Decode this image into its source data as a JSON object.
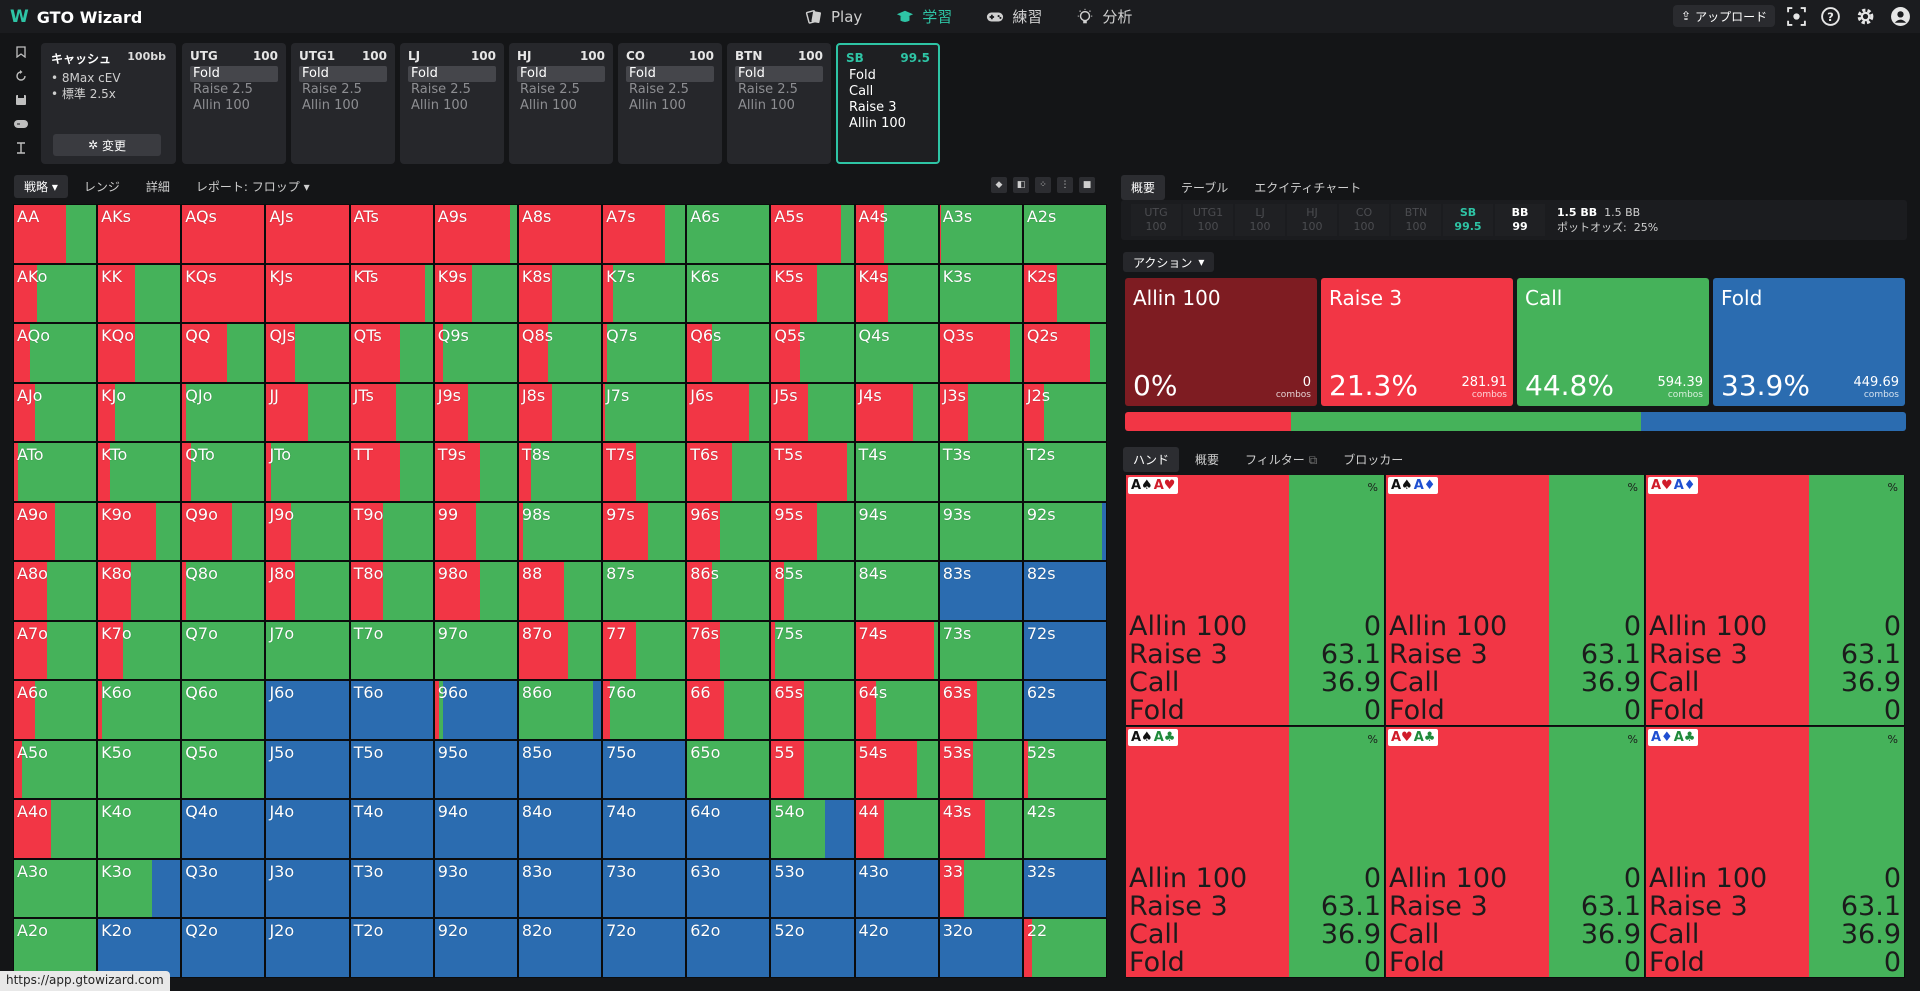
{
  "app": {
    "name": "GTO Wizard",
    "url": "https://app.gtowizard.com"
  },
  "nav": {
    "items": [
      {
        "label": "Play",
        "icon": "play-card-icon"
      },
      {
        "label": "学習",
        "icon": "graduation-cap-icon"
      },
      {
        "label": "練習",
        "icon": "gamepad-icon"
      },
      {
        "label": "分析",
        "icon": "lightbulb-icon"
      }
    ],
    "upload_label": "アップロード"
  },
  "cash": {
    "title": "キャッシュ",
    "stack": "100bb",
    "lines": [
      "8Max cEV",
      "標準 2.5x"
    ],
    "change_label": "変更"
  },
  "positions": [
    {
      "name": "UTG",
      "stack": "100",
      "actions": [
        "Fold",
        "Raise 2.5",
        "Allin 100"
      ],
      "selected": 0
    },
    {
      "name": "UTG1",
      "stack": "100",
      "actions": [
        "Fold",
        "Raise 2.5",
        "Allin 100"
      ],
      "selected": 0
    },
    {
      "name": "LJ",
      "stack": "100",
      "actions": [
        "Fold",
        "Raise 2.5",
        "Allin 100"
      ],
      "selected": 0
    },
    {
      "name": "HJ",
      "stack": "100",
      "actions": [
        "Fold",
        "Raise 2.5",
        "Allin 100"
      ],
      "selected": 0
    },
    {
      "name": "CO",
      "stack": "100",
      "actions": [
        "Fold",
        "Raise 2.5",
        "Allin 100"
      ],
      "selected": 0
    },
    {
      "name": "BTN",
      "stack": "100",
      "actions": [
        "Fold",
        "Raise 2.5",
        "Allin 100"
      ],
      "selected": 0
    },
    {
      "name": "SB",
      "stack": "99.5",
      "actions": [
        "Fold",
        "Call",
        "Raise 3",
        "Allin 100"
      ],
      "selected": -1
    }
  ],
  "grid_tabs": [
    "戦略",
    "レンジ",
    "詳細",
    "レポート: フロップ"
  ],
  "right_tabs": [
    "概要",
    "テーブル",
    "エクイティチャート"
  ],
  "stack_summary": [
    {
      "pos": "UTG",
      "stack": "100"
    },
    {
      "pos": "UTG1",
      "stack": "100"
    },
    {
      "pos": "LJ",
      "stack": "100"
    },
    {
      "pos": "HJ",
      "stack": "100"
    },
    {
      "pos": "CO",
      "stack": "100"
    },
    {
      "pos": "BTN",
      "stack": "100"
    },
    {
      "pos": "SB",
      "stack": "99.5"
    },
    {
      "pos": "BB",
      "stack": "99"
    }
  ],
  "pot": {
    "value": "1.5 BB",
    "value2": "1.5 BB",
    "odds_label": "ポットオッズ:",
    "odds": "25%"
  },
  "action_header": "アクション",
  "colors": {
    "allin": "#7e1c22",
    "raise": "#f23645",
    "call": "#45b25a",
    "fold": "#2b6cb0"
  },
  "actions_summary": [
    {
      "name": "Allin 100",
      "pct": "0%",
      "combos": "0",
      "color": "#7e1c22"
    },
    {
      "name": "Raise 3",
      "pct": "21.3%",
      "combos": "281.91",
      "color": "#f23645"
    },
    {
      "name": "Call",
      "pct": "44.8%",
      "combos": "594.39",
      "color": "#45b25a"
    },
    {
      "name": "Fold",
      "pct": "33.9%",
      "combos": "449.69",
      "color": "#2b6cb0"
    }
  ],
  "combos_label": "combos",
  "hand_tabs": [
    "ハンド",
    "概要",
    "フィルター",
    "ブロッカー"
  ],
  "hand_combos": [
    {
      "cards": [
        "A♠",
        "A♥"
      ],
      "stats": [
        [
          "Allin 100",
          "0"
        ],
        [
          "Raise 3",
          "63.1"
        ],
        [
          "Call",
          "36.9"
        ],
        [
          "Fold",
          "0"
        ]
      ]
    },
    {
      "cards": [
        "A♠",
        "A♦"
      ],
      "stats": [
        [
          "Allin 100",
          "0"
        ],
        [
          "Raise 3",
          "63.1"
        ],
        [
          "Call",
          "36.9"
        ],
        [
          "Fold",
          "0"
        ]
      ]
    },
    {
      "cards": [
        "A♥",
        "A♦"
      ],
      "stats": [
        [
          "Allin 100",
          "0"
        ],
        [
          "Raise 3",
          "63.1"
        ],
        [
          "Call",
          "36.9"
        ],
        [
          "Fold",
          "0"
        ]
      ]
    },
    {
      "cards": [
        "A♠",
        "A♣"
      ],
      "stats": [
        [
          "Allin 100",
          "0"
        ],
        [
          "Raise 3",
          "63.1"
        ],
        [
          "Call",
          "36.9"
        ],
        [
          "Fold",
          "0"
        ]
      ]
    },
    {
      "cards": [
        "A♥",
        "A♣"
      ],
      "stats": [
        [
          "Allin 100",
          "0"
        ],
        [
          "Raise 3",
          "63.1"
        ],
        [
          "Call",
          "36.9"
        ],
        [
          "Fold",
          "0"
        ]
      ]
    },
    {
      "cards": [
        "A♦",
        "A♣"
      ],
      "stats": [
        [
          "Allin 100",
          "0"
        ],
        [
          "Raise 3",
          "63.1"
        ],
        [
          "Call",
          "36.9"
        ],
        [
          "Fold",
          "0"
        ]
      ]
    }
  ],
  "hand_pct_label": "%",
  "grid": {
    "labels": [
      [
        "AA",
        "AKs",
        "AQs",
        "AJs",
        "ATs",
        "A9s",
        "A8s",
        "A7s",
        "A6s",
        "A5s",
        "A4s",
        "A3s",
        "A2s"
      ],
      [
        "AKo",
        "KK",
        "KQs",
        "KJs",
        "KTs",
        "K9s",
        "K8s",
        "K7s",
        "K6s",
        "K5s",
        "K4s",
        "K3s",
        "K2s"
      ],
      [
        "AQo",
        "KQo",
        "QQ",
        "QJs",
        "QTs",
        "Q9s",
        "Q8s",
        "Q7s",
        "Q6s",
        "Q5s",
        "Q4s",
        "Q3s",
        "Q2s"
      ],
      [
        "AJo",
        "KJo",
        "QJo",
        "JJ",
        "JTs",
        "J9s",
        "J8s",
        "J7s",
        "J6s",
        "J5s",
        "J4s",
        "J3s",
        "J2s"
      ],
      [
        "ATo",
        "KTo",
        "QTo",
        "JTo",
        "TT",
        "T9s",
        "T8s",
        "T7s",
        "T6s",
        "T5s",
        "T4s",
        "T3s",
        "T2s"
      ],
      [
        "A9o",
        "K9o",
        "Q9o",
        "J9o",
        "T9o",
        "99",
        "98s",
        "97s",
        "96s",
        "95s",
        "94s",
        "93s",
        "92s"
      ],
      [
        "A8o",
        "K8o",
        "Q8o",
        "J8o",
        "T8o",
        "98o",
        "88",
        "87s",
        "86s",
        "85s",
        "84s",
        "83s",
        "82s"
      ],
      [
        "A7o",
        "K7o",
        "Q7o",
        "J7o",
        "T7o",
        "97o",
        "87o",
        "77",
        "76s",
        "75s",
        "74s",
        "73s",
        "72s"
      ],
      [
        "A6o",
        "K6o",
        "Q6o",
        "J6o",
        "T6o",
        "96o",
        "86o",
        "76o",
        "66",
        "65s",
        "64s",
        "63s",
        "62s"
      ],
      [
        "A5o",
        "K5o",
        "Q5o",
        "J5o",
        "T5o",
        "95o",
        "85o",
        "75o",
        "65o",
        "55",
        "54s",
        "53s",
        "52s"
      ],
      [
        "A4o",
        "K4o",
        "Q4o",
        "J4o",
        "T4o",
        "94o",
        "84o",
        "74o",
        "64o",
        "54o",
        "44",
        "43s",
        "42s"
      ],
      [
        "A3o",
        "K3o",
        "Q3o",
        "J3o",
        "T3o",
        "93o",
        "83o",
        "73o",
        "63o",
        "53o",
        "43o",
        "33",
        "32s"
      ],
      [
        "A2o",
        "K2o",
        "Q2o",
        "J2o",
        "T2o",
        "92o",
        "82o",
        "72o",
        "62o",
        "52o",
        "42o",
        "32o",
        "22"
      ]
    ],
    "freqs": [
      [
        [
          0.63,
          0.37,
          0
        ],
        [
          1,
          0,
          0
        ],
        [
          1,
          0,
          0
        ],
        [
          1,
          0,
          0
        ],
        [
          1,
          0,
          0
        ],
        [
          0.92,
          0.08,
          0
        ],
        [
          1,
          0,
          0
        ],
        [
          0.75,
          0.25,
          0
        ],
        [
          0,
          1,
          0
        ],
        [
          0.85,
          0.15,
          0
        ],
        [
          0.35,
          0.65,
          0
        ],
        [
          0.02,
          0.98,
          0
        ],
        [
          0,
          1,
          0
        ]
      ],
      [
        [
          0.28,
          0.72,
          0
        ],
        [
          0.45,
          0.55,
          0
        ],
        [
          1,
          0,
          0
        ],
        [
          1,
          0,
          0
        ],
        [
          0.9,
          0.1,
          0
        ],
        [
          0.45,
          0.55,
          0
        ],
        [
          0.4,
          0.6,
          0
        ],
        [
          0.12,
          0.88,
          0
        ],
        [
          0,
          1,
          0
        ],
        [
          0.55,
          0.45,
          0
        ],
        [
          0.4,
          0.6,
          0
        ],
        [
          0,
          1,
          0
        ],
        [
          0.4,
          0.6,
          0
        ]
      ],
      [
        [
          0.2,
          0.8,
          0
        ],
        [
          0.45,
          0.55,
          0
        ],
        [
          0.55,
          0.45,
          0
        ],
        [
          0.35,
          0.65,
          0
        ],
        [
          0.6,
          0.4,
          0
        ],
        [
          0.1,
          0.9,
          0
        ],
        [
          0.35,
          0.65,
          0
        ],
        [
          0.05,
          0.95,
          0
        ],
        [
          0.3,
          0.7,
          0
        ],
        [
          0.35,
          0.65,
          0
        ],
        [
          0,
          1,
          0
        ],
        [
          0.85,
          0.15,
          0
        ],
        [
          0.8,
          0.2,
          0
        ]
      ],
      [
        [
          0.25,
          0.75,
          0
        ],
        [
          0.2,
          0.8,
          0
        ],
        [
          0.05,
          0.95,
          0
        ],
        [
          0.5,
          0.5,
          0
        ],
        [
          0.55,
          0.45,
          0
        ],
        [
          0.4,
          0.6,
          0
        ],
        [
          0.4,
          0.6,
          0
        ],
        [
          0.02,
          0.98,
          0
        ],
        [
          0.75,
          0.25,
          0
        ],
        [
          0.45,
          0.55,
          0
        ],
        [
          0.7,
          0.3,
          0
        ],
        [
          0.35,
          0.65,
          0
        ],
        [
          0.25,
          0.75,
          0
        ]
      ],
      [
        [
          0.05,
          0.95,
          0
        ],
        [
          0.15,
          0.85,
          0
        ],
        [
          0.1,
          0.9,
          0
        ],
        [
          0.05,
          0.95,
          0
        ],
        [
          0.6,
          0.4,
          0
        ],
        [
          0.55,
          0.45,
          0
        ],
        [
          0.15,
          0.85,
          0
        ],
        [
          0.4,
          0.6,
          0
        ],
        [
          0.55,
          0.45,
          0
        ],
        [
          0.92,
          0.08,
          0
        ],
        [
          0,
          1,
          0
        ],
        [
          0,
          1,
          0
        ],
        [
          0,
          1,
          0
        ]
      ],
      [
        [
          0.5,
          0.5,
          0
        ],
        [
          0.7,
          0.3,
          0
        ],
        [
          0.6,
          0.4,
          0
        ],
        [
          0.3,
          0.7,
          0
        ],
        [
          0.4,
          0.6,
          0
        ],
        [
          0.5,
          0.5,
          0
        ],
        [
          0.05,
          0.95,
          0
        ],
        [
          0.55,
          0.45,
          0
        ],
        [
          0.4,
          0.6,
          0
        ],
        [
          0.55,
          0.45,
          0
        ],
        [
          0,
          1,
          0
        ],
        [
          0,
          1,
          0
        ],
        [
          0,
          0.95,
          0.05
        ]
      ],
      [
        [
          0.4,
          0.6,
          0
        ],
        [
          0.4,
          0.6,
          0
        ],
        [
          0.05,
          0.95,
          0
        ],
        [
          0.35,
          0.65,
          0
        ],
        [
          0.4,
          0.6,
          0
        ],
        [
          0.55,
          0.45,
          0
        ],
        [
          0.55,
          0.45,
          0
        ],
        [
          0,
          1,
          0
        ],
        [
          0.3,
          0.7,
          0
        ],
        [
          0.15,
          0.85,
          0
        ],
        [
          0,
          1,
          0
        ],
        [
          0,
          0,
          1
        ],
        [
          0,
          0,
          1
        ]
      ],
      [
        [
          0.4,
          0.6,
          0
        ],
        [
          0.3,
          0.7,
          0
        ],
        [
          0,
          1,
          0
        ],
        [
          0,
          1,
          0
        ],
        [
          0,
          1,
          0
        ],
        [
          0,
          1,
          0
        ],
        [
          0.6,
          0.4,
          0
        ],
        [
          0.4,
          0.6,
          0
        ],
        [
          0.4,
          0.6,
          0
        ],
        [
          0.05,
          0.95,
          0
        ],
        [
          0.95,
          0.05,
          0
        ],
        [
          0,
          1,
          0
        ],
        [
          0,
          0,
          1
        ]
      ],
      [
        [
          0.25,
          0.75,
          0
        ],
        [
          0.05,
          0.95,
          0
        ],
        [
          0,
          1,
          0
        ],
        [
          0,
          0,
          1
        ],
        [
          0,
          0,
          1
        ],
        [
          0.05,
          0.05,
          0.9
        ],
        [
          0,
          0.9,
          0.1
        ],
        [
          0.08,
          0.92,
          0
        ],
        [
          0.45,
          0.55,
          0
        ],
        [
          0.4,
          0.6,
          0
        ],
        [
          0.25,
          0.75,
          0
        ],
        [
          0.45,
          0.55,
          0
        ],
        [
          0,
          0,
          1
        ]
      ],
      [
        [
          0.1,
          0.9,
          0
        ],
        [
          0,
          1,
          0
        ],
        [
          0,
          1,
          0
        ],
        [
          0,
          0,
          1
        ],
        [
          0,
          0,
          1
        ],
        [
          0,
          0,
          1
        ],
        [
          0,
          0,
          1
        ],
        [
          0,
          0,
          1
        ],
        [
          0,
          1,
          0
        ],
        [
          0.4,
          0.6,
          0
        ],
        [
          0.75,
          0.25,
          0
        ],
        [
          0.4,
          0.6,
          0
        ],
        [
          0.05,
          0.95,
          0
        ]
      ],
      [
        [
          0.45,
          0.55,
          0
        ],
        [
          0,
          1,
          0
        ],
        [
          0,
          0,
          1
        ],
        [
          0,
          0,
          1
        ],
        [
          0,
          0,
          1
        ],
        [
          0,
          0,
          1
        ],
        [
          0,
          0,
          1
        ],
        [
          0,
          0,
          1
        ],
        [
          0,
          0,
          1
        ],
        [
          0,
          0.65,
          0.35
        ],
        [
          0.35,
          0.65,
          0
        ],
        [
          0.55,
          0.45,
          0
        ],
        [
          0,
          1,
          0
        ]
      ],
      [
        [
          0,
          1,
          0
        ],
        [
          0,
          0.65,
          0.35
        ],
        [
          0,
          0,
          1
        ],
        [
          0,
          0,
          1
        ],
        [
          0,
          0,
          1
        ],
        [
          0,
          0,
          1
        ],
        [
          0,
          0,
          1
        ],
        [
          0,
          0,
          1
        ],
        [
          0,
          0,
          1
        ],
        [
          0,
          0,
          1
        ],
        [
          0,
          0,
          1
        ],
        [
          0.3,
          0.7,
          0
        ],
        [
          0,
          0,
          1
        ]
      ],
      [
        [
          0,
          1,
          0
        ],
        [
          0,
          0,
          1
        ],
        [
          0,
          0,
          1
        ],
        [
          0,
          0,
          1
        ],
        [
          0,
          0,
          1
        ],
        [
          0,
          0,
          1
        ],
        [
          0,
          0,
          1
        ],
        [
          0,
          0,
          1
        ],
        [
          0,
          0,
          1
        ],
        [
          0,
          0,
          1
        ],
        [
          0,
          0,
          1
        ],
        [
          0,
          0,
          1
        ],
        [
          0.1,
          0.9,
          0
        ]
      ]
    ]
  }
}
